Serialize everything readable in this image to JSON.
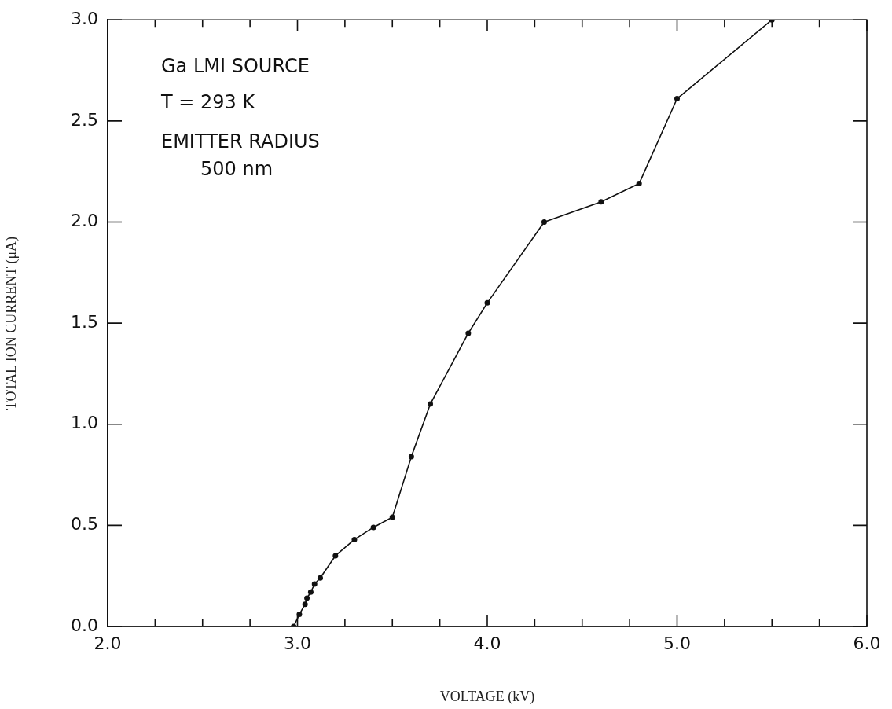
{
  "chart_data": {
    "type": "line",
    "xlabel": "VOLTAGE (kV)",
    "ylabel": "TOTAL ION CURRENT (μA)",
    "annotations": [
      "Ga LMI SOURCE",
      "T = 293 K",
      "EMITTER RADIUS",
      "500 nm"
    ],
    "x": [
      2.98,
      3.01,
      3.04,
      3.05,
      3.07,
      3.09,
      3.12,
      3.2,
      3.3,
      3.4,
      3.5,
      3.6,
      3.7,
      3.9,
      4.0,
      4.3,
      4.6,
      4.8,
      5.0,
      5.5
    ],
    "series": [
      {
        "color": "#111111",
        "values": [
          0,
          0.06,
          0.11,
          0.14,
          0.17,
          0.21,
          0.24,
          0.35,
          0.43,
          0.49,
          0.54,
          0.84,
          1.1,
          1.45,
          1.6,
          2.0,
          2.1,
          2.19,
          2.61,
          3.0
        ]
      }
    ],
    "xlim": [
      2.0,
      6.0
    ],
    "xticks": [
      {
        "value": 2.0,
        "label": "2.0"
      },
      {
        "value": 2.25,
        "label": null
      },
      {
        "value": 2.5,
        "label": null
      },
      {
        "value": 2.75,
        "label": null
      },
      {
        "value": 3.0,
        "label": "3.0"
      },
      {
        "value": 3.25,
        "label": null
      },
      {
        "value": 3.5,
        "label": null
      },
      {
        "value": 3.75,
        "label": null
      },
      {
        "value": 4.0,
        "label": "4.0"
      },
      {
        "value": 4.25,
        "label": null
      },
      {
        "value": 4.5,
        "label": null
      },
      {
        "value": 4.75,
        "label": null
      },
      {
        "value": 5.0,
        "label": "5.0"
      },
      {
        "value": 5.25,
        "label": null
      },
      {
        "value": 5.5,
        "label": null
      },
      {
        "value": 5.75,
        "label": null
      },
      {
        "value": 6.0,
        "label": "6.0"
      }
    ],
    "ylim": [
      0,
      3.0
    ],
    "yticks": [
      {
        "value": 0,
        "label": "0.0"
      },
      {
        "value": 0.5,
        "label": "0.5"
      },
      {
        "value": 1.0,
        "label": "1.0"
      },
      {
        "value": 1.5,
        "label": "1.5"
      },
      {
        "value": 2.0,
        "label": "2.0"
      },
      {
        "value": 2.5,
        "label": "2.5"
      },
      {
        "value": 3.0,
        "label": "3.0"
      }
    ],
    "grid": false,
    "legend": false,
    "marker": "circle",
    "line_style": "solid"
  }
}
